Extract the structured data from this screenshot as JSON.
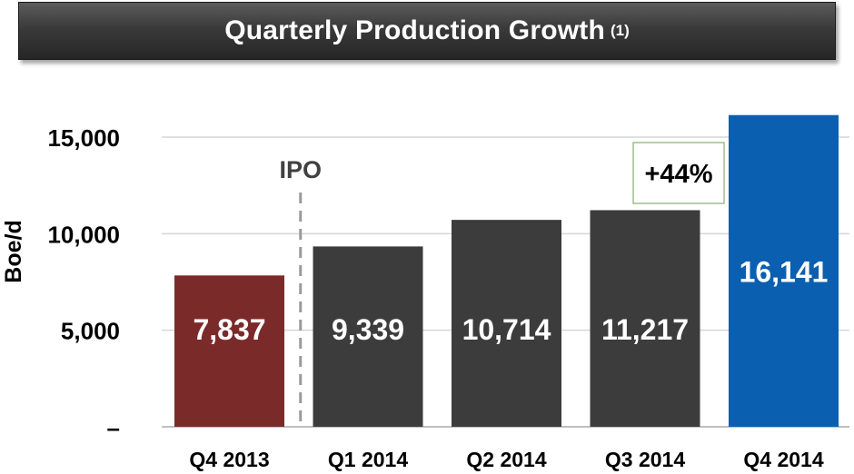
{
  "chart_data": {
    "type": "bar",
    "title": "Quarterly Production Growth",
    "title_note": "(1)",
    "ylabel": "Boe/d",
    "xlabel": "",
    "ylim": [
      0,
      16500
    ],
    "yticks": [
      0,
      5000,
      10000,
      15000
    ],
    "ytick_labels": [
      "–",
      "5,000",
      "10,000",
      "15,000"
    ],
    "categories": [
      "Q4 2013",
      "Q1 2014",
      "Q2 2014",
      "Q3 2014",
      "Q4 2014"
    ],
    "values": [
      7837,
      9339,
      10714,
      11217,
      16141
    ],
    "value_labels": [
      "7,837",
      "9,339",
      "10,714",
      "11,217",
      "16,141"
    ],
    "bar_colors": [
      "#7b2a2a",
      "#3c3c3c",
      "#3c3c3c",
      "#3c3c3c",
      "#0b5fb0"
    ],
    "grid": true,
    "annotations": {
      "ipo_label": "IPO",
      "growth_label": "+44%"
    }
  }
}
